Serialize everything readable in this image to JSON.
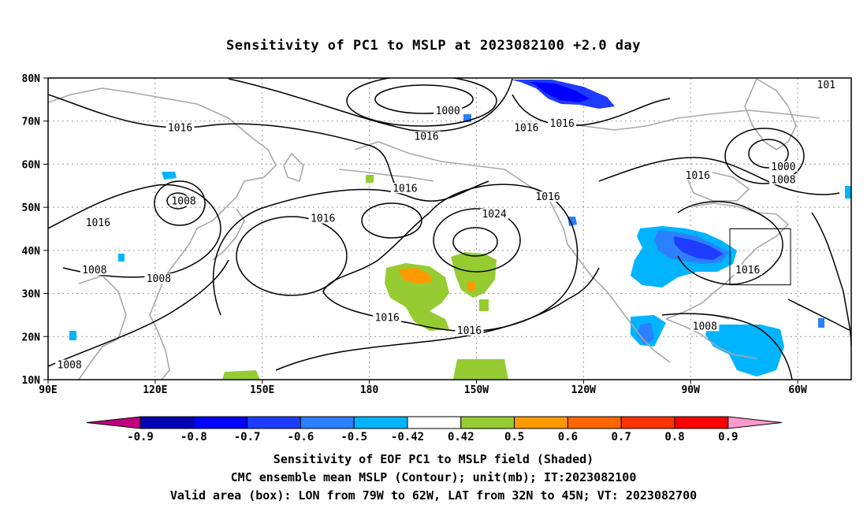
{
  "title": "Sensitivity of PC1 to MSLP at 2023082100 +2.0 day",
  "map": {
    "lat_labels": [
      "80N",
      "70N",
      "60N",
      "50N",
      "40N",
      "30N",
      "20N",
      "10N"
    ],
    "lon_labels": [
      "90E",
      "120E",
      "150E",
      "180",
      "150W",
      "120W",
      "90W",
      "60W"
    ],
    "contour_labels": [
      {
        "text": "1000",
        "lon": 202,
        "lat": 72
      },
      {
        "text": "1016",
        "lon": 127,
        "lat": 68
      },
      {
        "text": "1016",
        "lon": 196,
        "lat": 66
      },
      {
        "text": "1016",
        "lon": 224,
        "lat": 68
      },
      {
        "text": "1016",
        "lon": 234,
        "lat": 69
      },
      {
        "text": "1000",
        "lon": 296,
        "lat": 59
      },
      {
        "text": "1008",
        "lon": 296,
        "lat": 56
      },
      {
        "text": "1016",
        "lon": 272,
        "lat": 57
      },
      {
        "text": "101",
        "lon": 308,
        "lat": 78
      },
      {
        "text": "1008",
        "lon": 128,
        "lat": 51
      },
      {
        "text": "1016",
        "lon": 104,
        "lat": 46
      },
      {
        "text": "1016",
        "lon": 190,
        "lat": 54
      },
      {
        "text": "1024",
        "lon": 215,
        "lat": 48
      },
      {
        "text": "1016",
        "lon": 230,
        "lat": 52
      },
      {
        "text": "1016",
        "lon": 167,
        "lat": 47
      },
      {
        "text": "1008",
        "lon": 103,
        "lat": 35
      },
      {
        "text": "1008",
        "lon": 121,
        "lat": 33
      },
      {
        "text": "1016",
        "lon": 185,
        "lat": 24
      },
      {
        "text": "1016",
        "lon": 208,
        "lat": 21
      },
      {
        "text": "1008",
        "lon": 274,
        "lat": 22
      },
      {
        "text": "1016",
        "lon": 286,
        "lat": 35
      },
      {
        "text": "1008",
        "lon": 96,
        "lat": 13
      }
    ],
    "valid_box": {
      "lon_min": 281,
      "lon_max": 298,
      "lat_min": 32,
      "lat_max": 45
    }
  },
  "colorbar": {
    "labels": [
      "-0.9",
      "-0.8",
      "-0.7",
      "-0.6",
      "-0.5",
      "-0.42",
      "0.42",
      "0.5",
      "0.6",
      "0.7",
      "0.8",
      "0.9"
    ],
    "colors": [
      "#c0007f",
      "#0000b4",
      "#0000ff",
      "#1e3cff",
      "#2a80ff",
      "#00b4ff",
      "#ffffff",
      "#96cc32",
      "#ff9900",
      "#ff6600",
      "#ff3300",
      "#ff0000",
      "#ff99cc"
    ]
  },
  "captions": {
    "line1": "Sensitivity of EOF PC1 to MSLP field (Shaded)",
    "line2": "CMC ensemble mean MSLP (Contour); unit(mb); IT:2023082100",
    "line3": "Valid area (box): LON from 79W to 62W, LAT from 32N to 45N; VT: 2023082700"
  }
}
